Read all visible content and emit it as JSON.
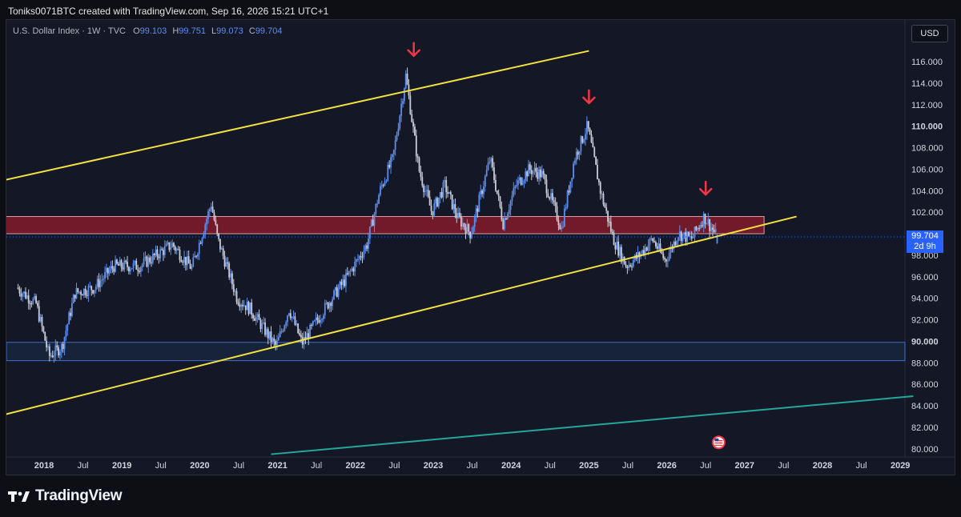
{
  "header": {
    "title": "Toniks0071BTC created with TradingView.com, Sep 16, 2026 15:21 UTC+1"
  },
  "legend": {
    "symbol": "U.S. Dollar Index · 1W · TVC",
    "o_label": "O",
    "o": "99.103",
    "h_label": "H",
    "h": "99.751",
    "l_label": "L",
    "l": "99.073",
    "c_label": "C",
    "c": "99.704"
  },
  "currency": "USD",
  "last_price": {
    "value": "99.704",
    "countdown": "2d 9h"
  },
  "brand": {
    "name": "TradingView"
  },
  "colors": {
    "background": "#141826",
    "candle_up": "#5b8def",
    "candle_down": "#c9ccd6",
    "channel": "#f5e042",
    "trendline": "#26a69a",
    "resistance_zone": "#8a1c2c",
    "support_zone": "#1e3a5f",
    "arrow": "#f23645"
  },
  "chart_data": {
    "type": "candlestick",
    "title": "U.S. Dollar Index",
    "interval": "1W",
    "grid": false,
    "ylim": [
      79.5,
      118
    ],
    "y_ticks": [
      "116.000",
      "114.000",
      "112.000",
      "110.000",
      "108.000",
      "106.000",
      "104.000",
      "102.000",
      "100.000",
      "98.000",
      "96.000",
      "94.000",
      "92.000",
      "90.000",
      "88.000",
      "86.000",
      "84.000",
      "82.000",
      "80.000"
    ],
    "x_ticks": [
      "2018",
      "Jul",
      "2019",
      "Jul",
      "2020",
      "Jul",
      "2021",
      "Jul",
      "2022",
      "Jul",
      "2023",
      "Jul",
      "2024",
      "Jul",
      "2025",
      "Jul",
      "2026",
      "Jul",
      "2027",
      "Jul",
      "2028",
      "Jul",
      "2029"
    ],
    "price_path": [
      [
        "2017-09",
        95.0
      ],
      [
        "2017-12",
        93.5
      ],
      [
        "2018-02",
        88.6
      ],
      [
        "2018-04",
        89.5
      ],
      [
        "2018-06",
        94.5
      ],
      [
        "2018-09",
        95.0
      ],
      [
        "2018-12",
        97.0
      ],
      [
        "2019-04",
        97.0
      ],
      [
        "2019-09",
        99.0
      ],
      [
        "2019-12",
        96.8
      ],
      [
        "2020-03",
        102.8
      ],
      [
        "2020-04",
        99.5
      ],
      [
        "2020-07",
        94.0
      ],
      [
        "2020-09",
        93.0
      ],
      [
        "2021-01",
        89.5
      ],
      [
        "2021-03",
        93.0
      ],
      [
        "2021-05",
        89.8
      ],
      [
        "2021-09",
        93.5
      ],
      [
        "2021-12",
        96.0
      ],
      [
        "2022-03",
        99.0
      ],
      [
        "2022-05",
        104.0
      ],
      [
        "2022-07",
        107.0
      ],
      [
        "2022-09",
        114.7
      ],
      [
        "2022-11",
        106.0
      ],
      [
        "2023-01",
        102.0
      ],
      [
        "2023-03",
        104.5
      ],
      [
        "2023-05",
        101.5
      ],
      [
        "2023-07",
        100.0
      ],
      [
        "2023-10",
        107.0
      ],
      [
        "2023-12",
        101.0
      ],
      [
        "2024-02",
        104.5
      ],
      [
        "2024-04",
        106.0
      ],
      [
        "2024-06",
        105.5
      ],
      [
        "2024-09",
        100.5
      ],
      [
        "2024-11",
        107.0
      ],
      [
        "2025-01",
        110.0
      ],
      [
        "2025-03",
        104.0
      ],
      [
        "2025-05",
        99.5
      ],
      [
        "2025-07",
        97.0
      ],
      [
        "2025-09",
        98.0
      ],
      [
        "2025-11",
        99.5
      ],
      [
        "2026-01",
        97.5
      ],
      [
        "2026-03",
        100.0
      ],
      [
        "2026-05",
        99.5
      ],
      [
        "2026-07",
        101.6
      ],
      [
        "2026-09",
        99.7
      ]
    ],
    "last": {
      "open": 99.103,
      "high": 99.751,
      "low": 99.073,
      "close": 99.704
    },
    "annotations": {
      "channel_upper": {
        "from": [
          "2017-07",
          105.0
        ],
        "to": [
          "2025-01",
          117.0
        ]
      },
      "channel_lower": {
        "from": [
          "2017-07",
          83.2
        ],
        "to": [
          "2027-09",
          101.6
        ]
      },
      "trendline": {
        "from": [
          "2020-12",
          79.5
        ],
        "to": [
          "2029-03",
          84.9
        ]
      },
      "resistance_zone": {
        "y": [
          100.0,
          101.6
        ],
        "x": [
          "2017-07",
          "2027-04"
        ]
      },
      "support_zone": {
        "y": [
          88.2,
          89.9
        ]
      },
      "arrows": [
        [
          "2022-10",
          114.9
        ],
        [
          "2025-01",
          110.5
        ],
        [
          "2026-07",
          102.0
        ]
      ],
      "flag": [
        "2026-09",
        80.3
      ]
    }
  }
}
